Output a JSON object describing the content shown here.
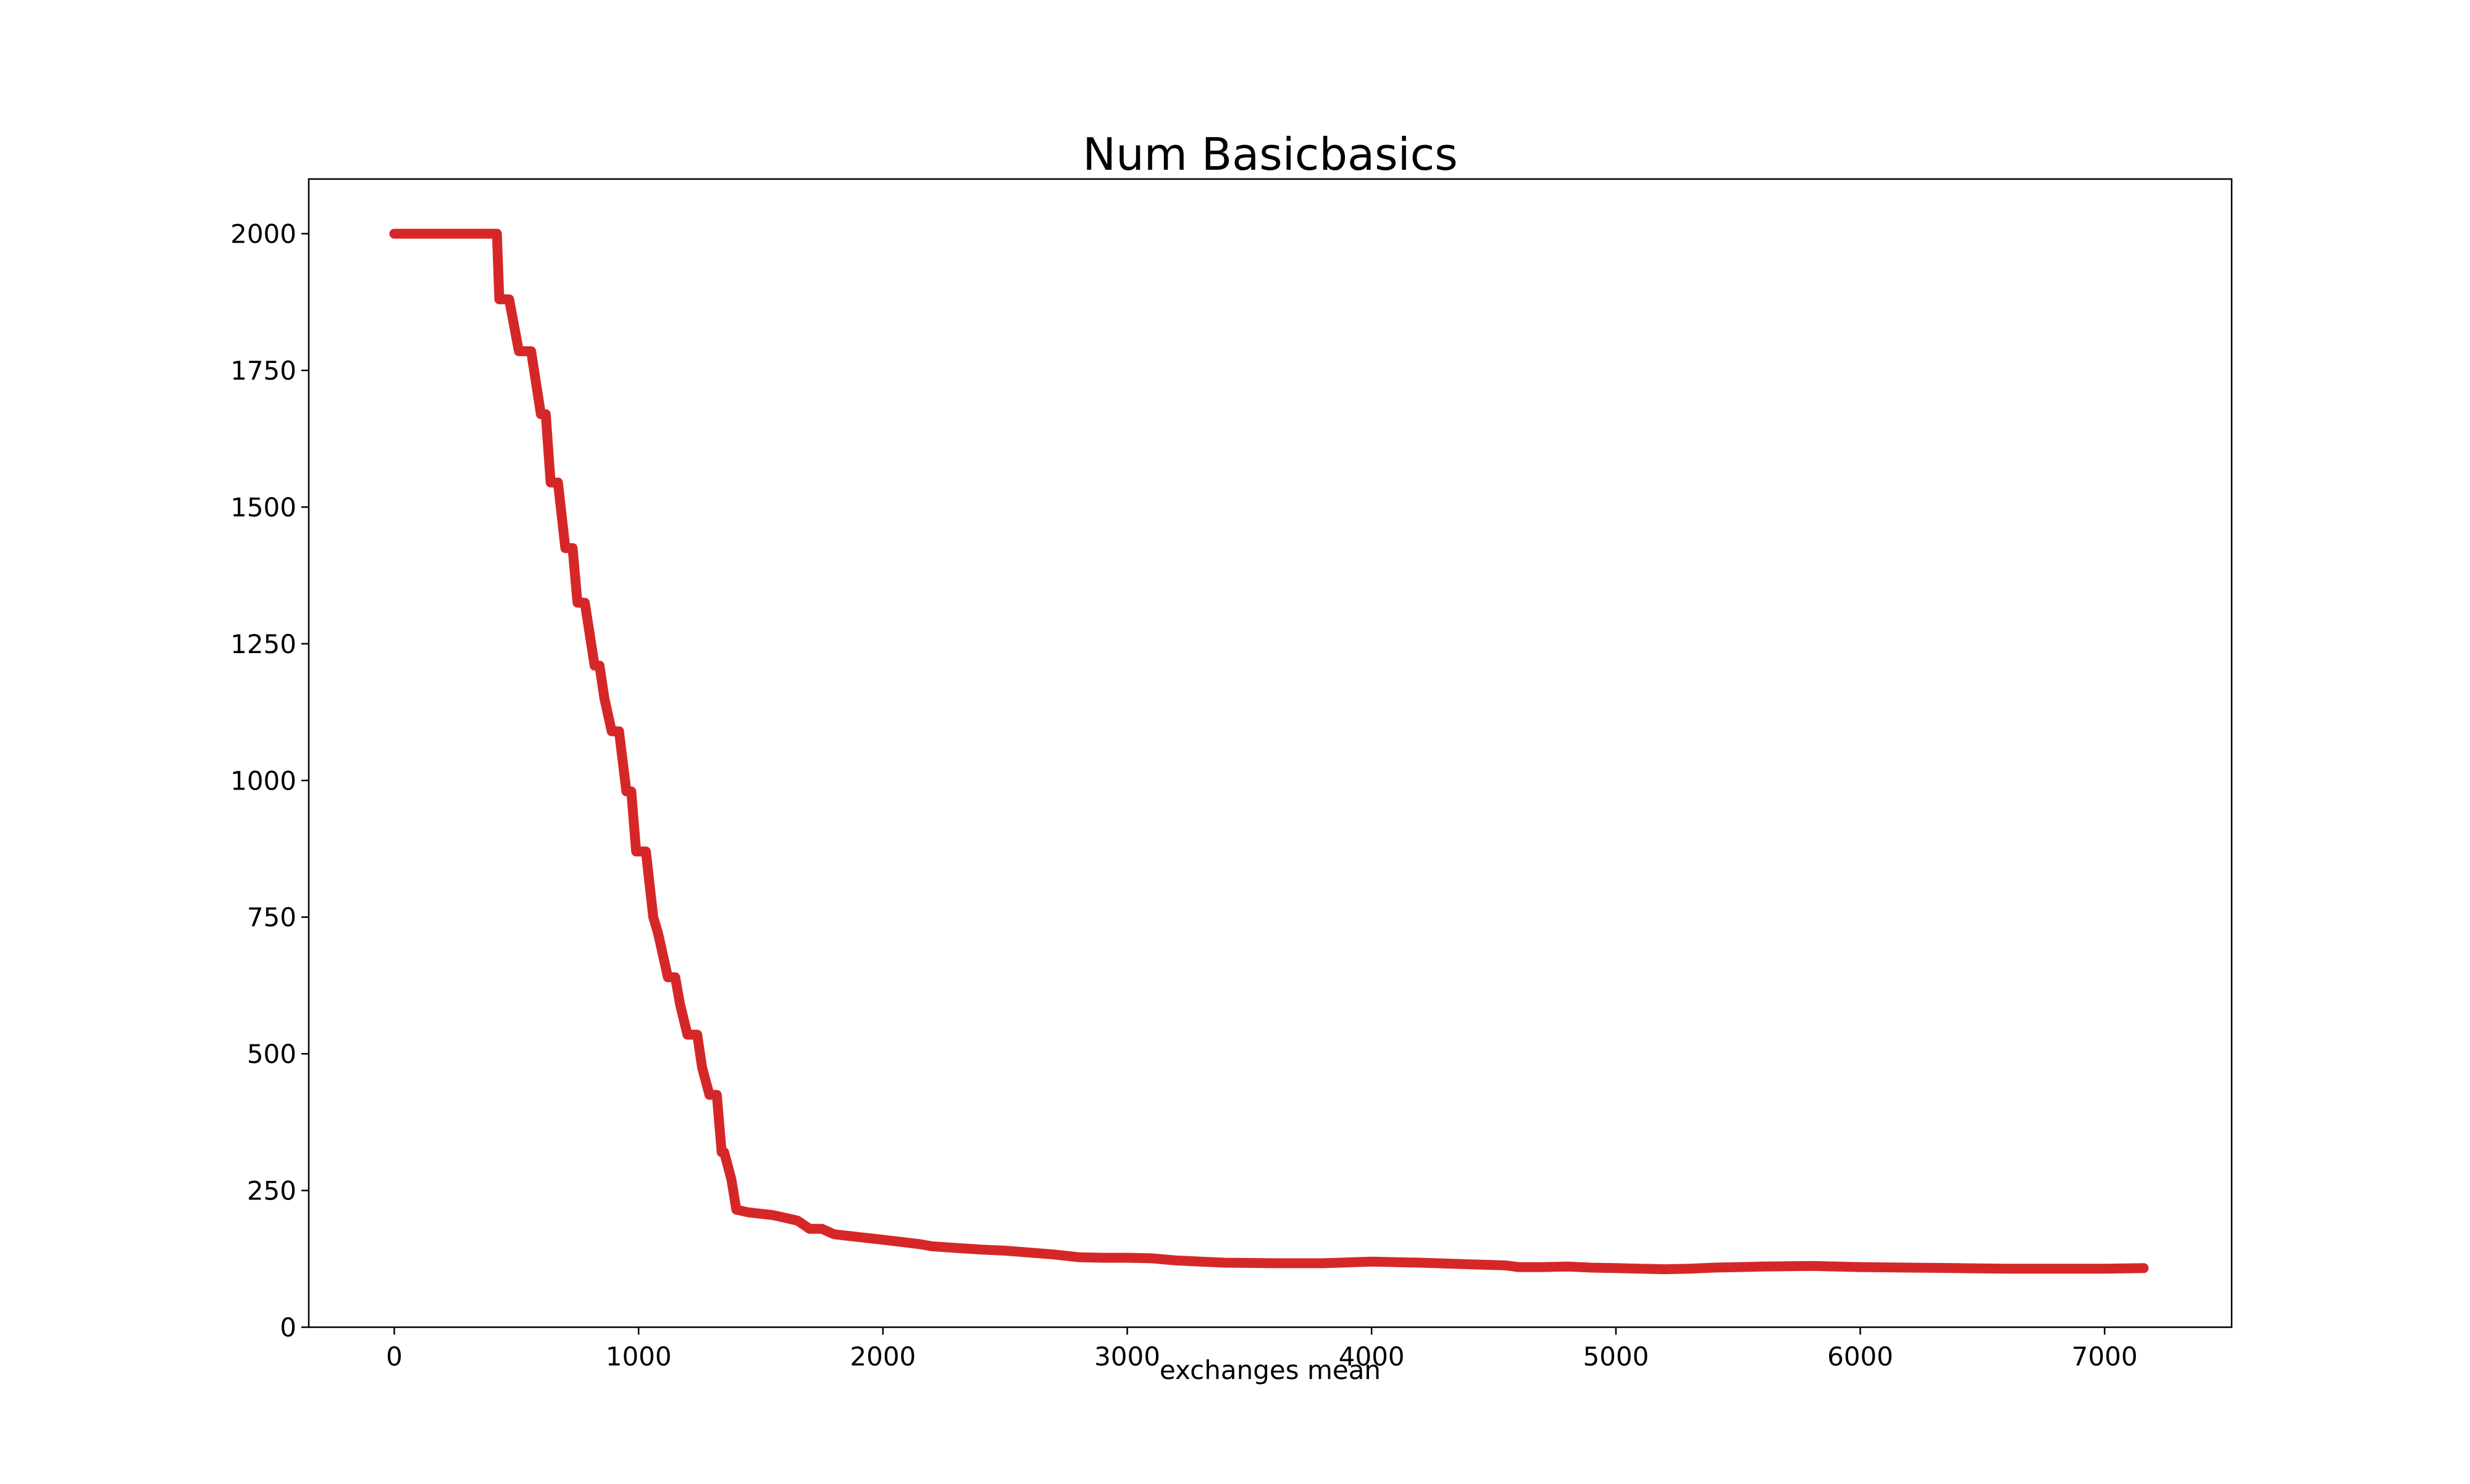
{
  "chart_data": {
    "type": "line",
    "title": "Num Basicbasics",
    "xlabel": "exchanges mean",
    "ylabel": "",
    "xlim": [
      -350,
      7520
    ],
    "ylim": [
      0,
      2100
    ],
    "x_ticks": [
      0,
      1000,
      2000,
      3000,
      4000,
      5000,
      6000,
      7000
    ],
    "x_tick_labels": [
      "0",
      "1000",
      "2000",
      "3000",
      "4000",
      "5000",
      "6000",
      "7000"
    ],
    "y_ticks": [
      0,
      250,
      500,
      750,
      1000,
      1250,
      1500,
      1750,
      2000
    ],
    "y_tick_labels": [
      "0",
      "250",
      "500",
      "750",
      "1000",
      "1250",
      "1500",
      "1750",
      "2000"
    ],
    "grid": false,
    "legend": "none",
    "line_color": "#d62728",
    "series": [
      {
        "x": [
          0,
          420,
          430,
          470,
          510,
          560,
          600,
          620,
          640,
          670,
          700,
          730,
          750,
          780,
          820,
          840,
          860,
          890,
          920,
          950,
          970,
          990,
          1000,
          1030,
          1060,
          1080,
          1120,
          1150,
          1170,
          1200,
          1240,
          1260,
          1290,
          1320,
          1340,
          1350,
          1380,
          1400,
          1450,
          1550,
          1650,
          1700,
          1750,
          1800,
          1900,
          2000,
          2150,
          2200,
          2300,
          2400,
          2500,
          2700,
          2800,
          2900,
          3000,
          3100,
          3200,
          3300,
          3400,
          3600,
          3800,
          4000,
          4200,
          4400,
          4550,
          4600,
          4700,
          4800,
          4900,
          5000,
          5100,
          5200,
          5300,
          5400,
          5600,
          5800,
          6000,
          6200,
          6400,
          6600,
          6800,
          7000,
          7160
        ],
        "y": [
          2000,
          2000,
          1880,
          1880,
          1785,
          1785,
          1670,
          1670,
          1545,
          1545,
          1425,
          1425,
          1325,
          1325,
          1210,
          1210,
          1150,
          1090,
          1090,
          980,
          980,
          870,
          870,
          870,
          750,
          720,
          640,
          640,
          590,
          535,
          535,
          475,
          425,
          425,
          320,
          320,
          270,
          215,
          210,
          205,
          195,
          180,
          180,
          170,
          165,
          160,
          152,
          148,
          145,
          142,
          140,
          133,
          128,
          127,
          127,
          126,
          122,
          120,
          118,
          117,
          117,
          120,
          118,
          115,
          113,
          110,
          110,
          111,
          109,
          108,
          107,
          106,
          107,
          109,
          111,
          112,
          110,
          109,
          108,
          107,
          107,
          107,
          108
        ]
      }
    ]
  }
}
